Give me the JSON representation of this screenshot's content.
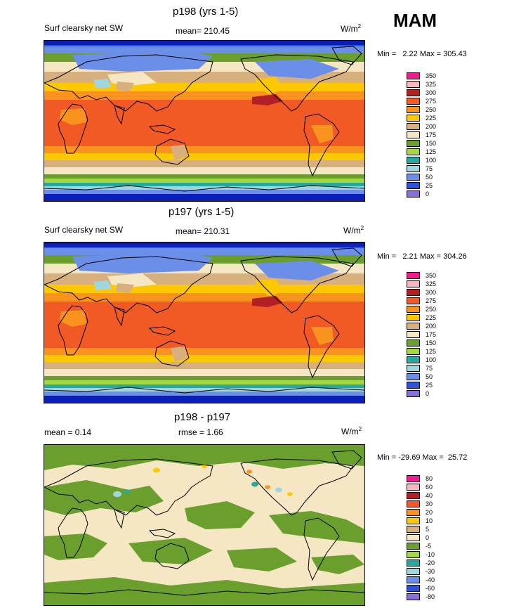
{
  "season": "MAM",
  "panels": [
    {
      "title": "p198 (yrs 1-5)",
      "left_label": "Surf clearsky net SW",
      "center_label": "mean= 210.45",
      "units_base": "W/m",
      "units_sup": "2",
      "minmax": "Min =   2.22 Max = 305.43",
      "levels": [
        "350",
        "325",
        "300",
        "275",
        "250",
        "225",
        "200",
        "175",
        "150",
        "125",
        "100",
        "75",
        "50",
        "25",
        "0"
      ],
      "colors": [
        "#ee1c8c",
        "#f5b8c0",
        "#b21f24",
        "#f15a24",
        "#f7931e",
        "#fcc800",
        "#d8b07e",
        "#f5e6c4",
        "#6a9f2e",
        "#a6d640",
        "#25a89e",
        "#9fd6e0",
        "#6b8fe8",
        "#2e52d8",
        "#8a6fd8"
      ]
    },
    {
      "title": "p197 (yrs 1-5)",
      "left_label": "Surf clearsky net SW",
      "center_label": "mean= 210.31",
      "units_base": "W/m",
      "units_sup": "2",
      "minmax": "Min =   2.21 Max = 304.26",
      "levels": [
        "350",
        "325",
        "300",
        "275",
        "250",
        "225",
        "200",
        "175",
        "150",
        "125",
        "100",
        "75",
        "50",
        "25",
        "0"
      ],
      "colors": [
        "#ee1c8c",
        "#f5b8c0",
        "#b21f24",
        "#f15a24",
        "#f7931e",
        "#fcc800",
        "#d8b07e",
        "#f5e6c4",
        "#6a9f2e",
        "#a6d640",
        "#25a89e",
        "#9fd6e0",
        "#6b8fe8",
        "#2e52d8",
        "#8a6fd8"
      ]
    },
    {
      "title": "p198 - p197",
      "left_label": "mean =   0.14",
      "center_label": "rmse =   1.66",
      "units_base": "W/m",
      "units_sup": "2",
      "minmax": "Min = -29.69 Max =  25.72",
      "levels": [
        "80",
        "60",
        "40",
        "30",
        "20",
        "10",
        "5",
        "0",
        "-5",
        "-10",
        "-20",
        "-30",
        "-40",
        "-60",
        "-80"
      ],
      "colors": [
        "#ee1c8c",
        "#f5b8c0",
        "#b21f24",
        "#f15a24",
        "#f7931e",
        "#fcc800",
        "#d8b07e",
        "#f5e6c4",
        "#6a9f2e",
        "#a6d640",
        "#25a89e",
        "#9fd6e0",
        "#6b8fe8",
        "#2e52d8",
        "#8a6fd8"
      ]
    }
  ],
  "field_colors": {
    "deep_blue": "#0a1fb8",
    "blue": "#2e52d8",
    "light_blue": "#6b8fe8",
    "cyan_pale": "#9fd6e0",
    "teal": "#25a89e",
    "light_green": "#a6d640",
    "green": "#6a9f2e",
    "cream": "#f5e6c4",
    "tan": "#d8b07e",
    "yellow": "#fcc800",
    "orange": "#f7931e",
    "red_orange": "#f15a24",
    "dark_red": "#b21f24"
  }
}
